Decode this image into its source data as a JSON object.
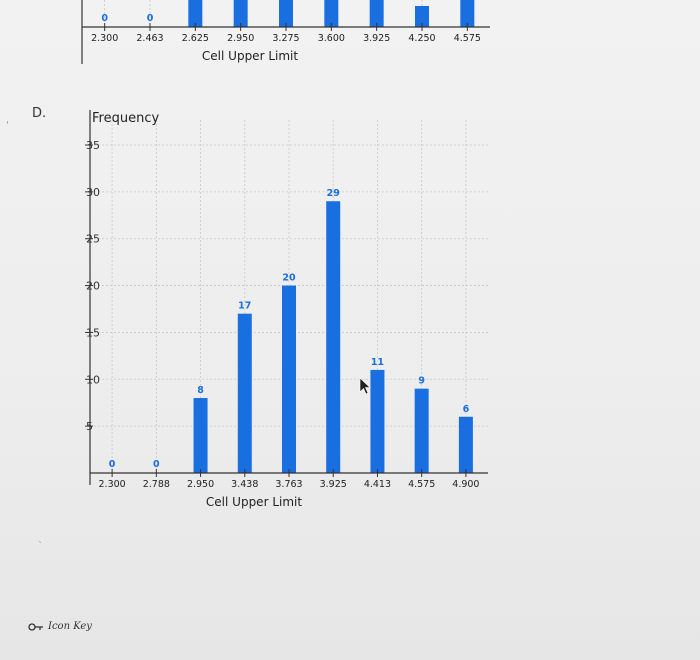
{
  "option_label": "D.",
  "icon_key": {
    "label": "Icon Key",
    "icon": "key-icon"
  },
  "colors": {
    "bar": "#1a6fe0",
    "grid": "#c8c8c8",
    "data_label": "#1a6fe0",
    "axis": "#333333"
  },
  "chart_data": [
    {
      "type": "bar",
      "partially_visible": true,
      "xlabel": "Cell Upper Limit",
      "categories": [
        "2.300",
        "2.463",
        "2.625",
        "2.950",
        "3.275",
        "3.600",
        "3.925",
        "4.250",
        "4.575"
      ],
      "values": [
        0,
        0,
        null,
        null,
        null,
        null,
        null,
        null,
        null
      ],
      "data_labels": [
        "0",
        "0",
        "",
        "",
        "",
        "",
        "",
        "",
        ""
      ]
    },
    {
      "type": "bar",
      "ylabel": "Frequency",
      "xlabel": "Cell Upper Limit",
      "ylim": [
        0,
        35
      ],
      "yticks": [
        "35",
        "30",
        "25",
        "20",
        "15",
        "10",
        "5"
      ],
      "grid": true,
      "categories": [
        "2.300",
        "2.788",
        "2.950",
        "3.438",
        "3.763",
        "3.925",
        "4.413",
        "4.575",
        "4.900"
      ],
      "values": [
        0,
        0,
        8,
        17,
        20,
        29,
        11,
        9,
        6
      ],
      "data_labels": [
        "0",
        "0",
        "8",
        "17",
        "20",
        "29",
        "11",
        "9",
        "6"
      ]
    }
  ]
}
